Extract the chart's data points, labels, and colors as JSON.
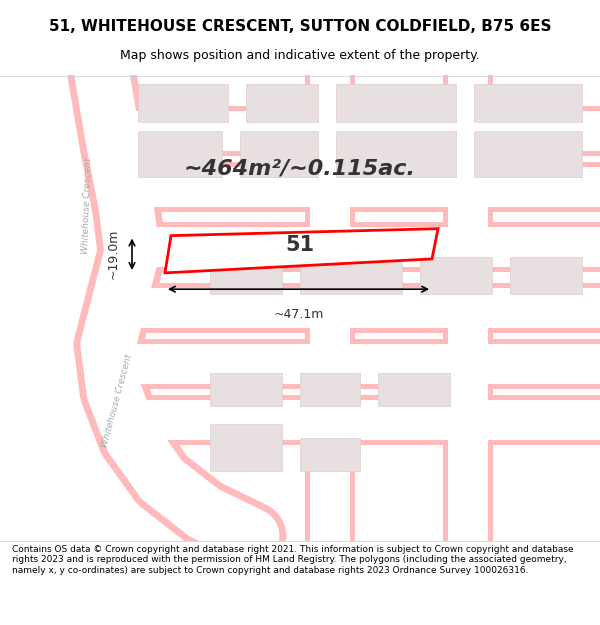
{
  "title": "51, WHITEHOUSE CRESCENT, SUTTON COLDFIELD, B75 6ES",
  "subtitle": "Map shows position and indicative extent of the property.",
  "footer": "Contains OS data © Crown copyright and database right 2021. This information is subject to Crown copyright and database rights 2023 and is reproduced with the permission of HM Land Registry. The polygons (including the associated geometry, namely x, y co-ordinates) are subject to Crown copyright and database rights 2023 Ordnance Survey 100026316.",
  "area_text": "~464m²/~0.115ac.",
  "property_number": "51",
  "width_label": "~47.1m",
  "height_label": "~19.0m",
  "bg_color": "#ffffff",
  "map_bg": "#f5f0f0",
  "road_color": "#ffffff",
  "plot_outline_color": "#ff0000",
  "plot_fill_color": "#ffffff",
  "block_color": "#e8e0e0",
  "road_line_color": "#ffb0b0",
  "street_label": "Whitehouse Crescent",
  "street_label2": "Whitehouse Crescent"
}
